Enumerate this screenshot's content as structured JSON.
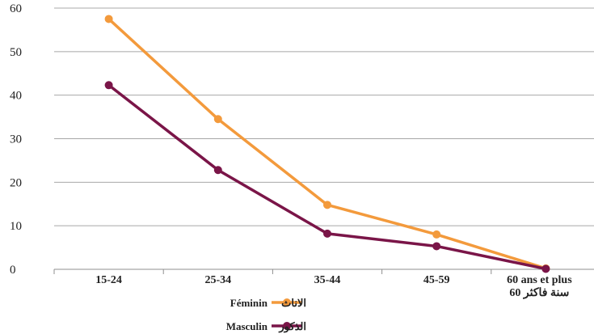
{
  "chart_data": {
    "type": "line",
    "categories": [
      [
        "15-24"
      ],
      [
        "25-34"
      ],
      [
        "35-44"
      ],
      [
        "45-59"
      ],
      [
        "60 ans et plus",
        "60 سنة فاكثر"
      ]
    ],
    "series": [
      {
        "name_fr": "Féminin",
        "name_ar": "الاناث",
        "color": "#F39A3C",
        "values": [
          57.5,
          34.5,
          14.8,
          8.0,
          0.2
        ]
      },
      {
        "name_fr": "Masculin",
        "name_ar": "الذكور",
        "color": "#7A1548",
        "values": [
          42.3,
          22.8,
          8.2,
          5.3,
          0.1
        ]
      }
    ],
    "ylim": [
      0,
      60
    ],
    "yticks": [
      "0",
      "10",
      "20",
      "30",
      "40",
      "50",
      "60"
    ],
    "grid": true,
    "legend_position": "bottom-center"
  }
}
